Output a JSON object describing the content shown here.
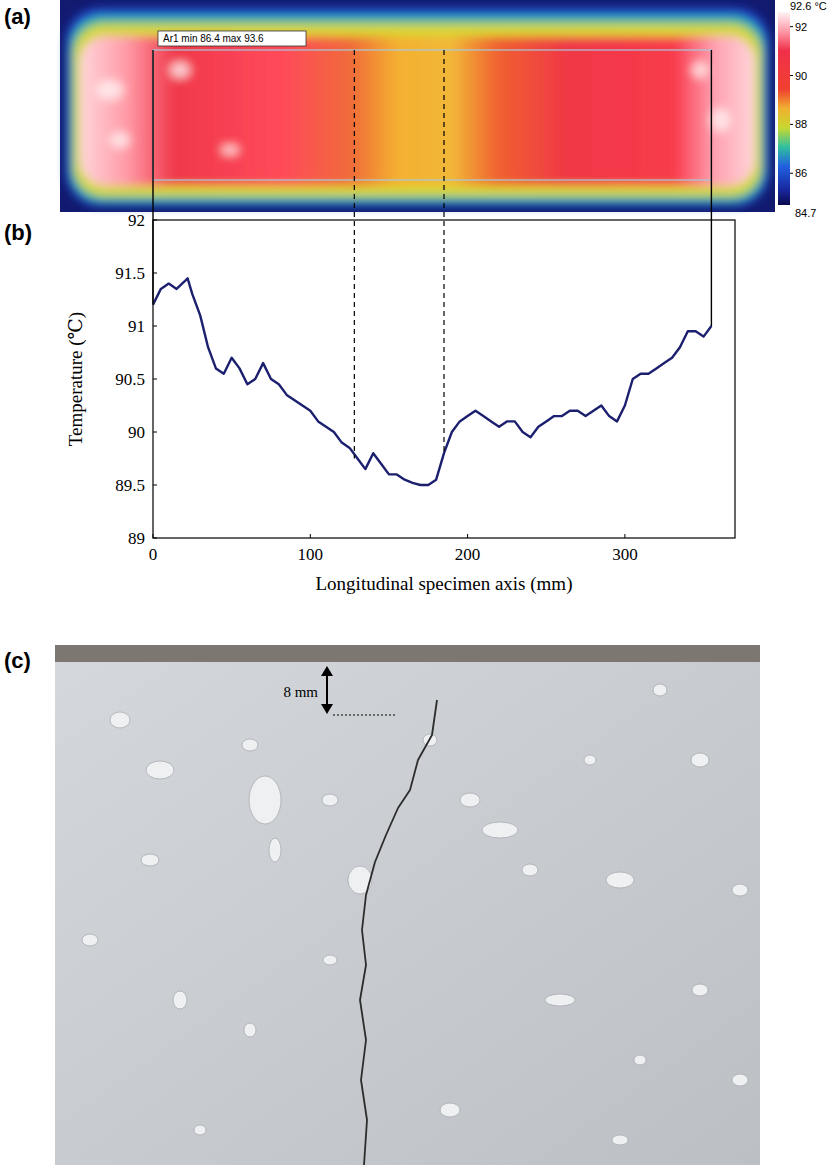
{
  "chart_data": {
    "type": "line",
    "label": "(b)",
    "x_label": "Longitudinal specimen axis (mm)",
    "y_label": "Temperature (℃)",
    "x": [
      0,
      5,
      10,
      15,
      20,
      22,
      25,
      30,
      35,
      40,
      45,
      50,
      55,
      60,
      65,
      70,
      75,
      80,
      85,
      90,
      95,
      100,
      105,
      110,
      115,
      120,
      125,
      130,
      135,
      140,
      145,
      150,
      155,
      160,
      165,
      170,
      175,
      180,
      185,
      190,
      195,
      200,
      205,
      210,
      215,
      220,
      225,
      230,
      235,
      240,
      245,
      250,
      255,
      260,
      265,
      270,
      275,
      280,
      285,
      290,
      295,
      300,
      305,
      310,
      315,
      320,
      325,
      330,
      335,
      340,
      345,
      350,
      355
    ],
    "series": [
      {
        "color": "#1b1f6e",
        "values": [
          91.2,
          91.35,
          91.4,
          91.35,
          91.42,
          91.45,
          91.3,
          91.1,
          90.8,
          90.6,
          90.55,
          90.7,
          90.6,
          90.45,
          90.5,
          90.65,
          90.5,
          90.45,
          90.35,
          90.3,
          90.25,
          90.2,
          90.1,
          90.05,
          90.0,
          89.9,
          89.85,
          89.75,
          89.65,
          89.8,
          89.7,
          89.6,
          89.6,
          89.55,
          89.52,
          89.5,
          89.5,
          89.55,
          89.8,
          90.0,
          90.1,
          90.15,
          90.2,
          90.15,
          90.1,
          90.05,
          90.1,
          90.1,
          90.0,
          89.95,
          90.05,
          90.1,
          90.15,
          90.15,
          90.2,
          90.2,
          90.15,
          90.2,
          90.25,
          90.15,
          90.1,
          90.25,
          90.5,
          90.55,
          90.55,
          90.6,
          90.65,
          90.7,
          90.8,
          90.95,
          90.95,
          90.9,
          91.0
        ]
      }
    ],
    "xlim": [
      0,
      370
    ],
    "xticks": [
      0,
      100,
      200,
      300
    ],
    "ylim": [
      89,
      92
    ],
    "yticks": [
      89,
      89.5,
      90,
      90.5,
      91,
      91.5,
      92
    ],
    "grid": false,
    "dashed_x": [
      128,
      185
    ]
  },
  "thermal_image": {
    "label": "(a)",
    "roi_label": "Ar1 min 86.4 max 93.6",
    "colorbar": {
      "min": 84.7,
      "max": {
        "value": 92.6,
        "label": "92.6 °C"
      },
      "ticks": [
        86,
        88,
        90,
        92
      ]
    }
  },
  "photo": {
    "label": "(c)",
    "depth_label": "8 mm"
  }
}
